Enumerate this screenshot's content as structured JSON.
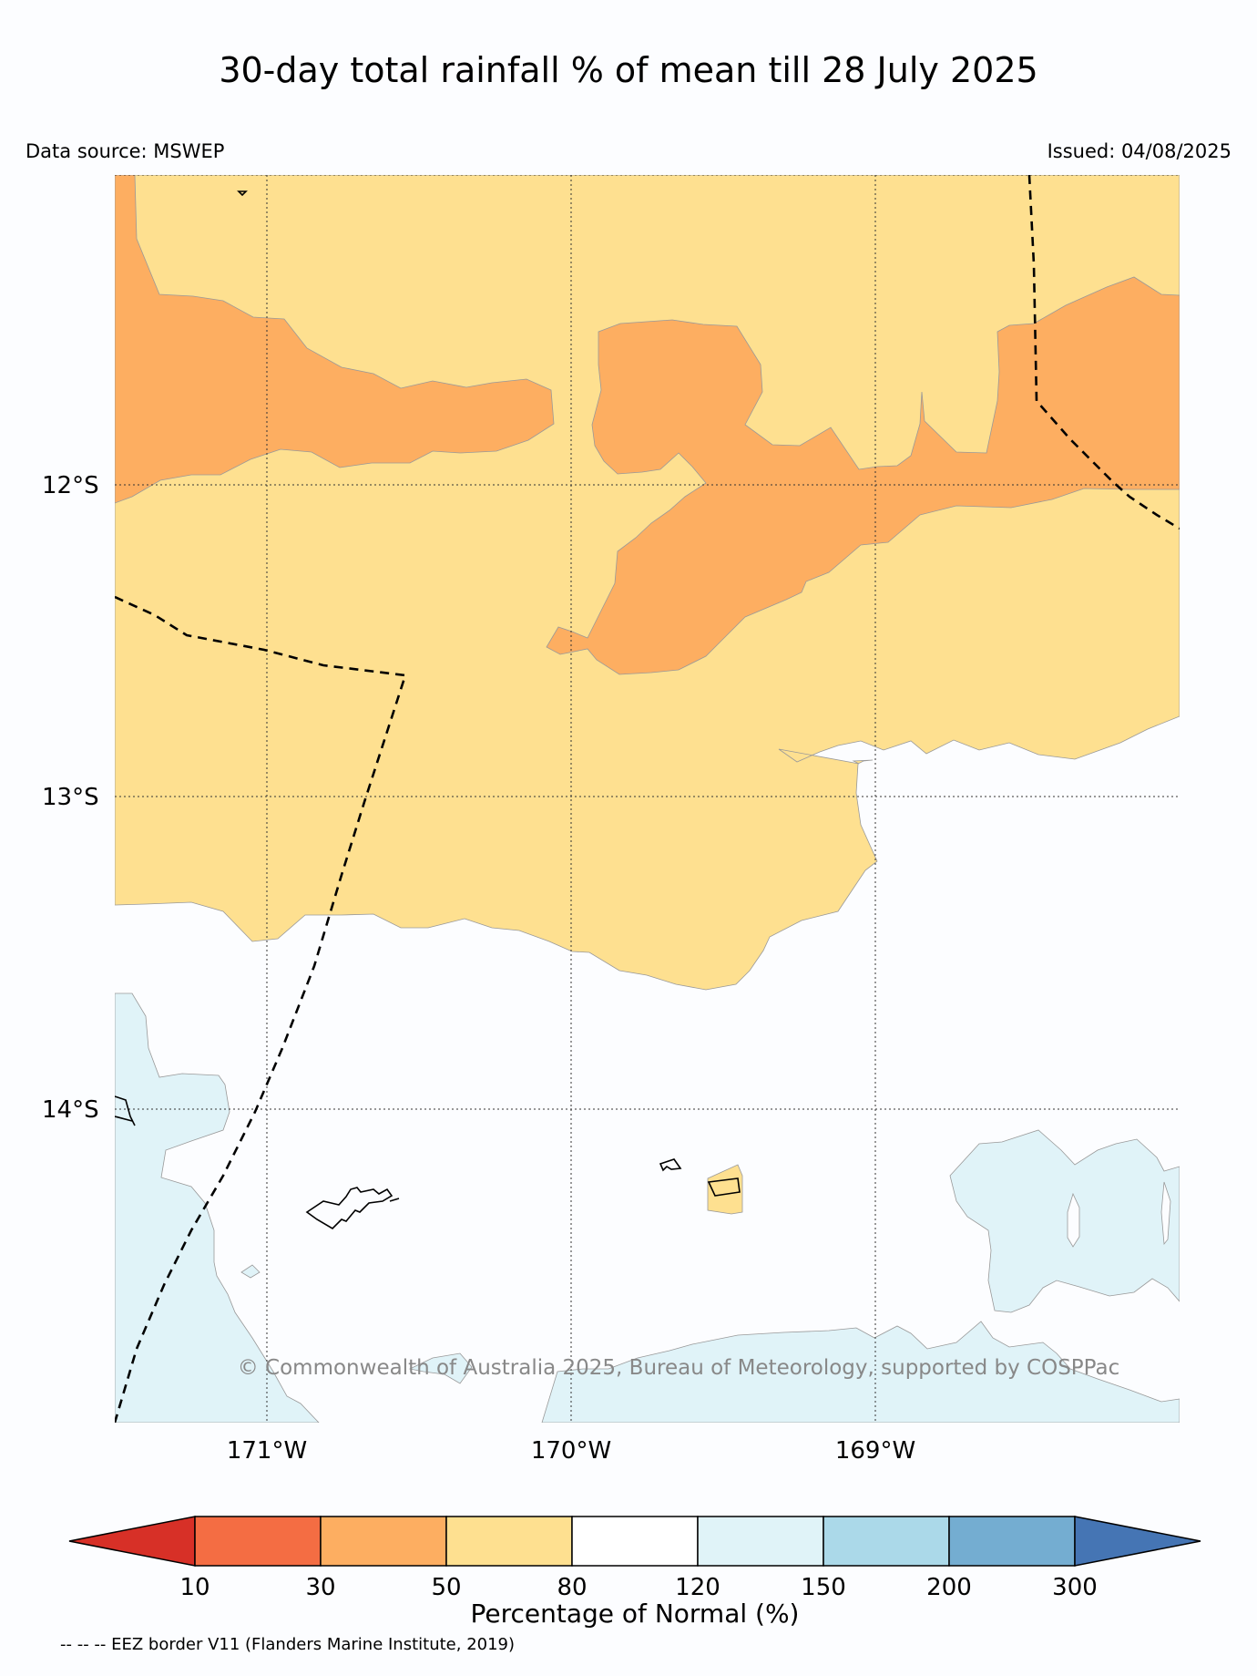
{
  "title": "30-day total rainfall % of mean till 28 July 2025",
  "data_source": "Data source: MSWEP",
  "issued": "Issued: 04/08/2025",
  "lat_labels": [
    "12°S",
    "13°S",
    "14°S"
  ],
  "lon_labels": [
    "171°W",
    "170°W",
    "169°W"
  ],
  "copyright": "© Commonwealth of Australia 2025, Bureau of Meteorology, supported by COSPPac",
  "colorbar": {
    "label": "Percentage of Normal (%)",
    "ticks": [
      "10",
      "30",
      "50",
      "80",
      "120",
      "150",
      "200",
      "300"
    ],
    "colors": [
      "#d73027",
      "#f46d43",
      "#fdae61",
      "#fee090",
      "#ffffff",
      "#e0f3f8",
      "#abd9e9",
      "#74add1",
      "#4575b4"
    ]
  },
  "eez_note": "-- -- -- EEZ border V11 (Flanders Marine Institute, 2019)",
  "palette": {
    "orange": "#fdae61",
    "yellow": "#fee090",
    "white": "#fcfdff",
    "lightblue": "#e0f3f8"
  }
}
